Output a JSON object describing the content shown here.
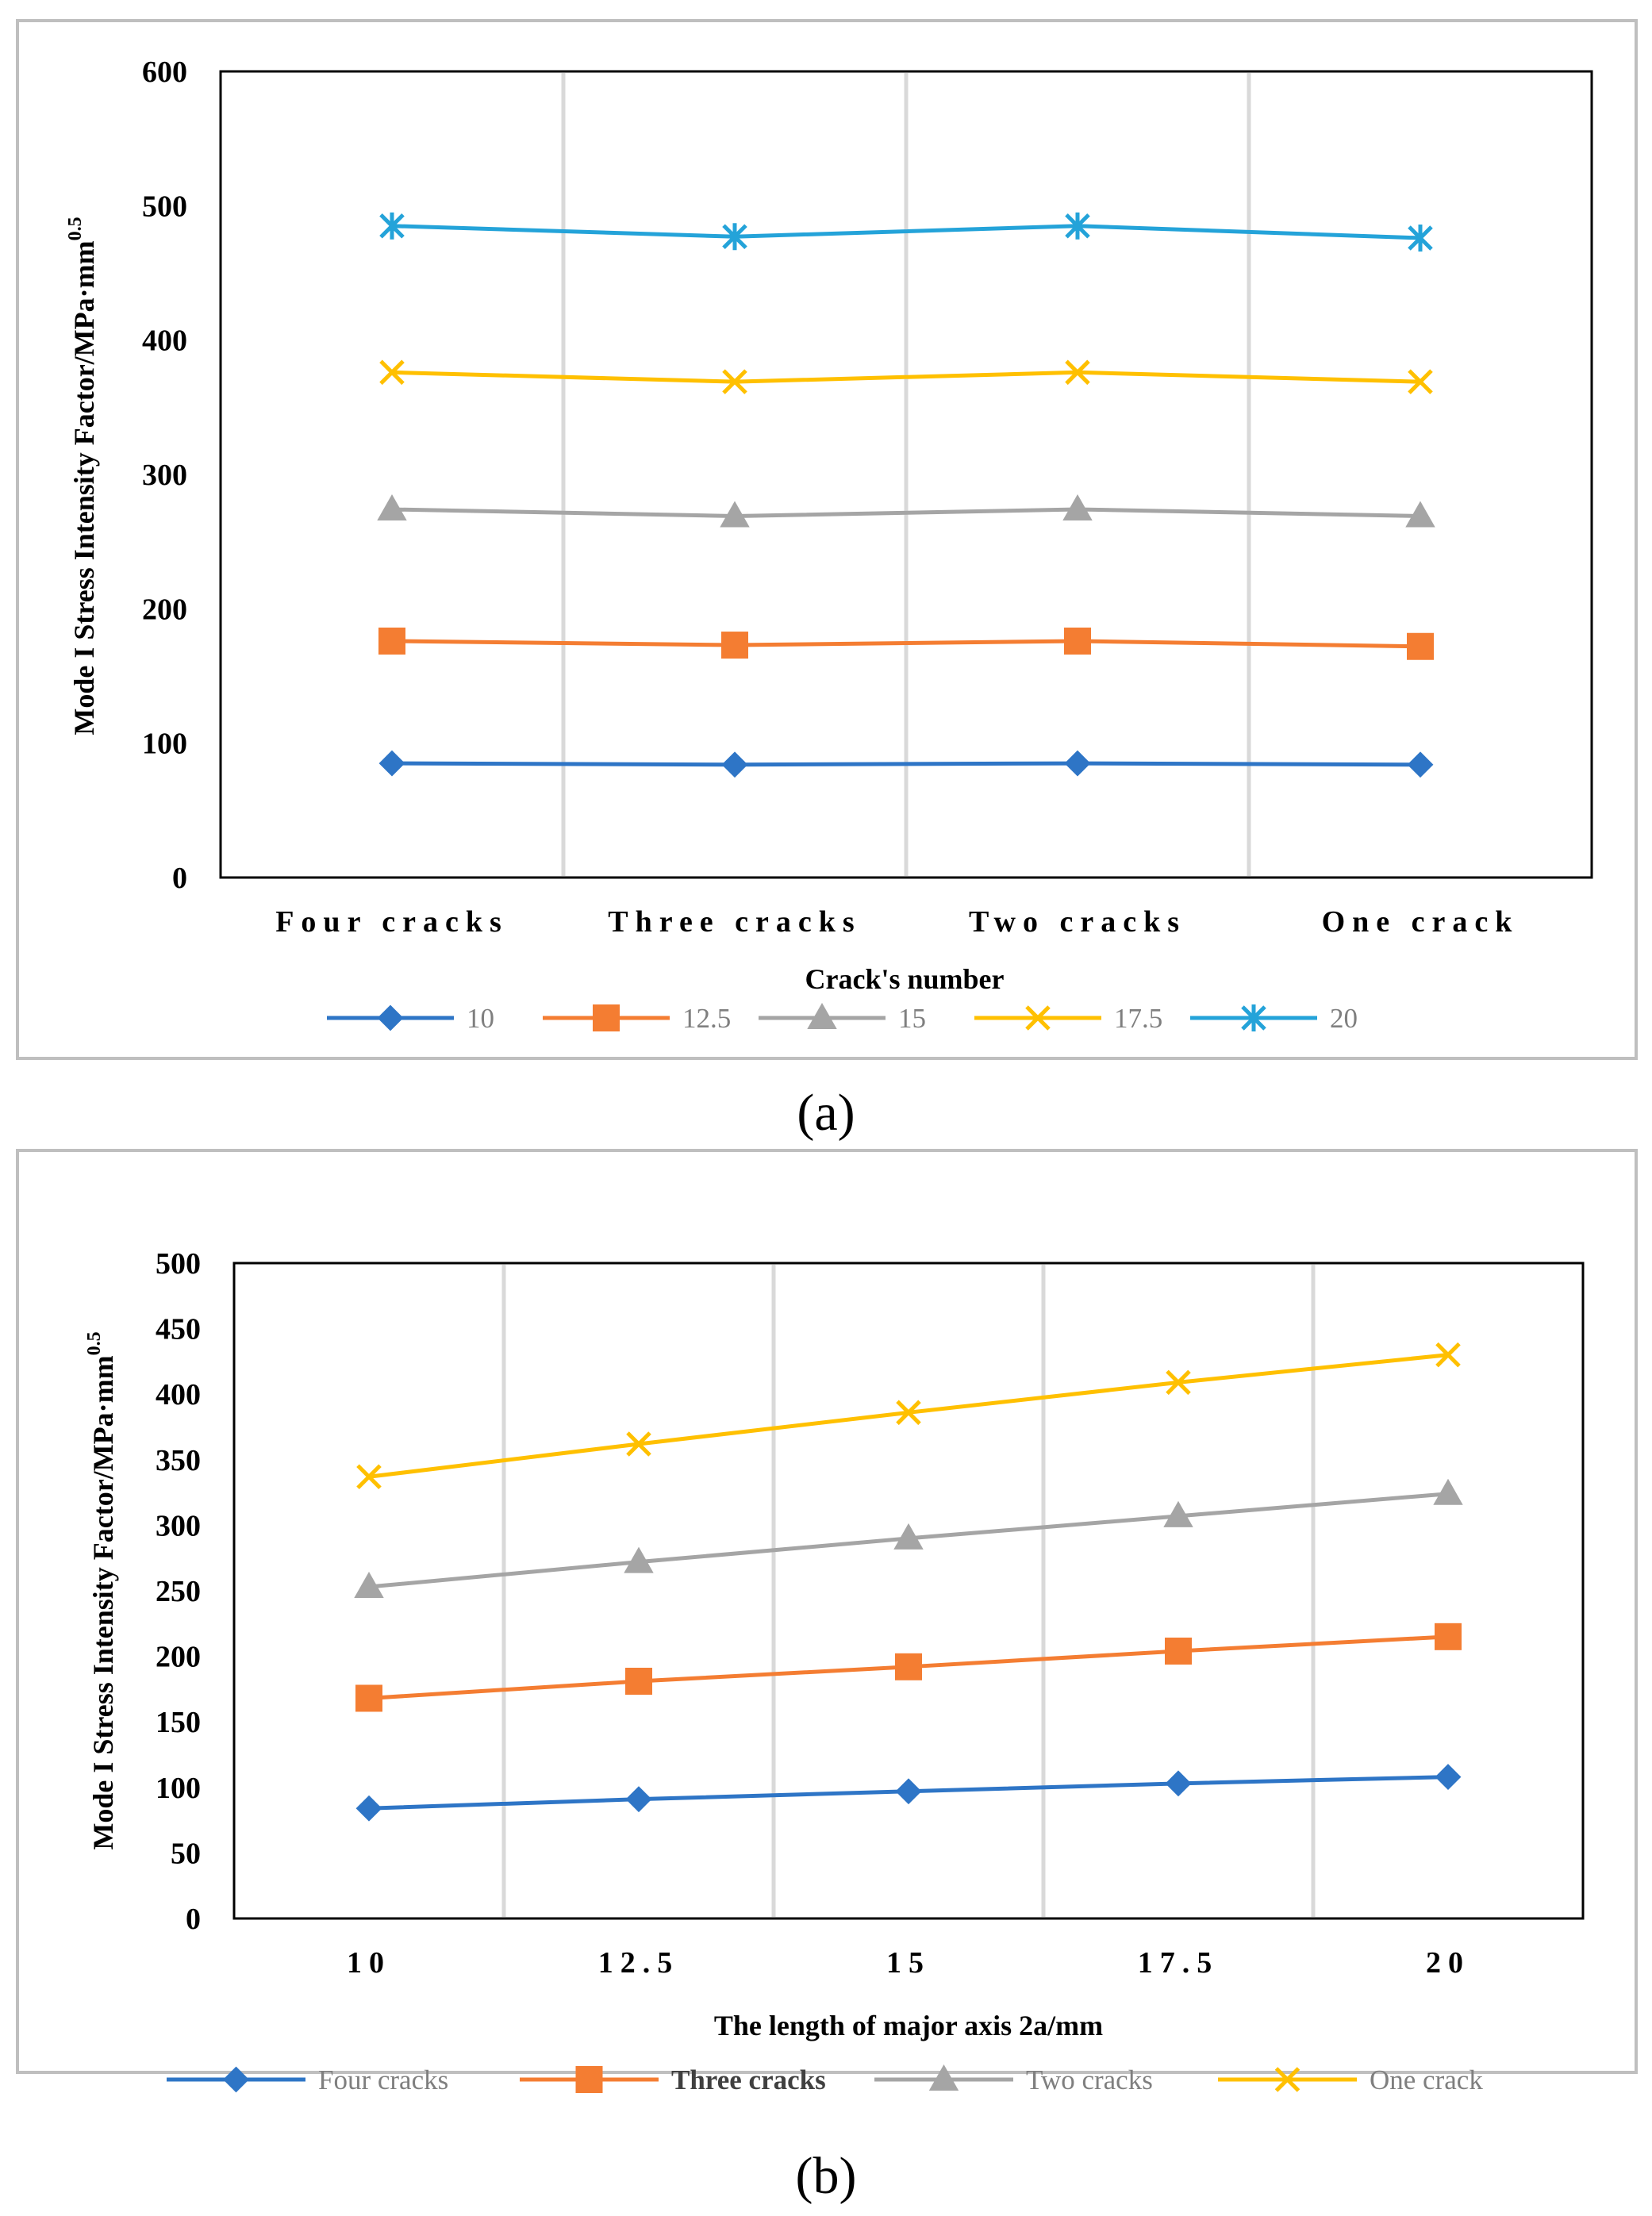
{
  "colors": {
    "s10": "#2E75C6",
    "s12_5": "#F47D32",
    "s15": "#A5A5A5",
    "s17_5": "#FFC000",
    "s20": "#24A3D9",
    "ylabel_a": "#E01E1E",
    "ylabel_b": "#000000",
    "gridline": "#D9D9D9",
    "frame": "#BFBFBF"
  },
  "chart_data": [
    {
      "type": "line",
      "panel_label": "(a)",
      "title": "",
      "ylabel": "Mode I Stress Intensity Factor/MPa·mm",
      "ylabel_sup": "0.5",
      "xlabel": "Crack's number",
      "categories": [
        "Four cracks",
        "Three cracks",
        "Two cracks",
        "One crack"
      ],
      "ylim": [
        0,
        600
      ],
      "yticks": [
        "0",
        "100",
        "200",
        "300",
        "400",
        "500",
        "600"
      ],
      "series": [
        {
          "name": "10",
          "marker": "diamond",
          "values": [
            85,
            84,
            85,
            84
          ]
        },
        {
          "name": "12.5",
          "marker": "square",
          "values": [
            176,
            173,
            176,
            172
          ]
        },
        {
          "name": "15",
          "marker": "triangle",
          "values": [
            274,
            269,
            274,
            269
          ]
        },
        {
          "name": "17.5",
          "marker": "x",
          "values": [
            376,
            369,
            376,
            369
          ]
        },
        {
          "name": "20",
          "marker": "star",
          "values": [
            485,
            477,
            485,
            476
          ]
        }
      ],
      "legend_position": "bottom"
    },
    {
      "type": "line",
      "panel_label": "(b)",
      "title": "",
      "ylabel": "Mode I Stress Intensity Factor/MPa·mm",
      "ylabel_sup": "0.5",
      "xlabel": "The length of major axis 2a/mm",
      "categories": [
        "10",
        "12.5",
        "15",
        "17.5",
        "20"
      ],
      "ylim": [
        0,
        500
      ],
      "yticks": [
        "0",
        "50",
        "100",
        "150",
        "200",
        "250",
        "300",
        "350",
        "400",
        "450",
        "500"
      ],
      "series": [
        {
          "name": "Four cracks",
          "marker": "diamond",
          "values": [
            84,
            91,
            97,
            103,
            108
          ]
        },
        {
          "name": "Three cracks",
          "marker": "square",
          "values": [
            168,
            181,
            192,
            204,
            215
          ]
        },
        {
          "name": "Two cracks",
          "marker": "triangle",
          "values": [
            253,
            272,
            290,
            307,
            324
          ]
        },
        {
          "name": "One crack",
          "marker": "x",
          "values": [
            337,
            362,
            386,
            409,
            430
          ]
        }
      ],
      "legend_position": "bottom"
    }
  ]
}
